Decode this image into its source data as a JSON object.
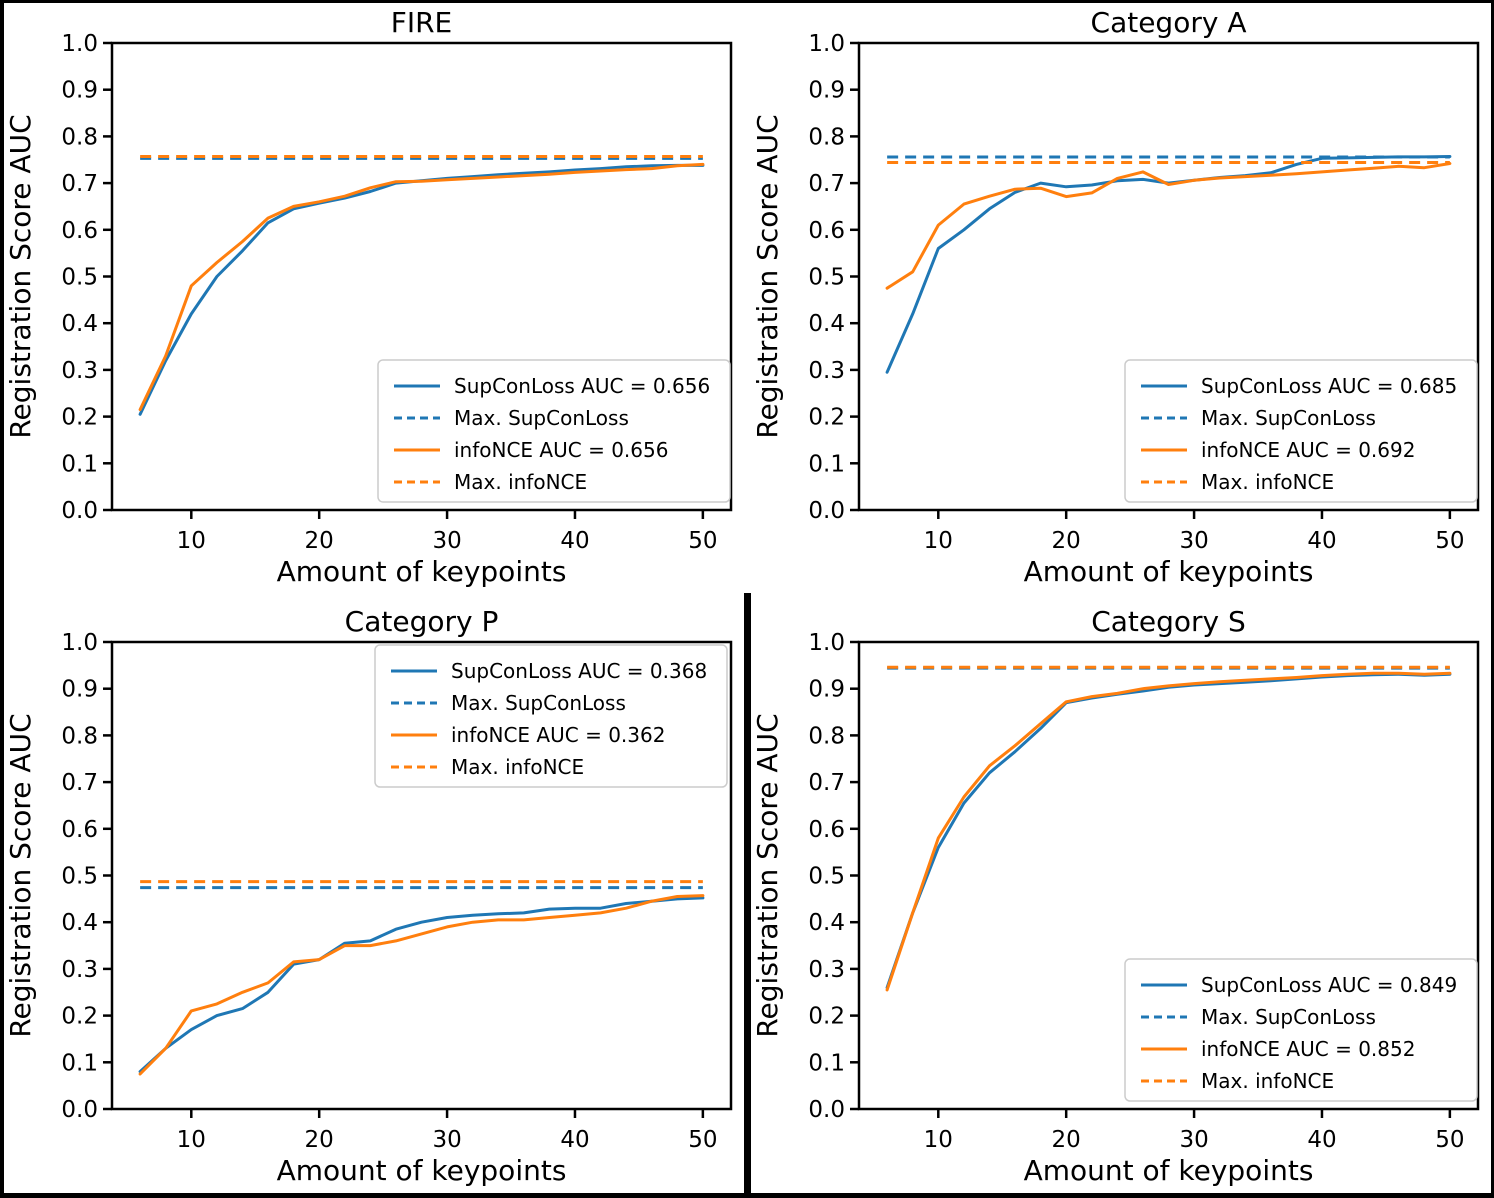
{
  "figure": {
    "background": "#ffffff",
    "border_color": "#000000",
    "ylabel": "Registration Score AUC",
    "xlabel": "Amount of keypoints",
    "colors": {
      "supconloss": "#1f77b4",
      "infonce": "#ff7f0e"
    }
  },
  "chart_data": [
    {
      "type": "line",
      "title": "FIRE",
      "xlabel": "Amount of keypoints",
      "ylabel": "Registration Score AUC",
      "xlim": [
        3.8,
        52.2
      ],
      "ylim": [
        0.0,
        1.0
      ],
      "x_ticks": [
        "10",
        "20",
        "30",
        "40",
        "50"
      ],
      "y_ticks": [
        "0.0",
        "0.1",
        "0.2",
        "0.3",
        "0.4",
        "0.5",
        "0.6",
        "0.7",
        "0.8",
        "0.9",
        "1.0"
      ],
      "grid": false,
      "legend_position": "lower_right",
      "x": [
        6,
        8,
        10,
        12,
        14,
        16,
        18,
        20,
        22,
        24,
        26,
        28,
        30,
        32,
        34,
        36,
        38,
        40,
        42,
        44,
        46,
        48,
        50
      ],
      "series": [
        {
          "name": "SupConLoss AUC = 0.656",
          "color": "#1f77b4",
          "dash": false,
          "values": [
            0.205,
            0.32,
            0.42,
            0.5,
            0.555,
            0.615,
            0.645,
            0.657,
            0.668,
            0.682,
            0.7,
            0.705,
            0.71,
            0.714,
            0.718,
            0.721,
            0.724,
            0.728,
            0.731,
            0.735,
            0.737,
            0.738,
            0.738
          ]
        },
        {
          "name": "Max. SupConLoss",
          "color": "#1f77b4",
          "dash": true,
          "hline": 0.753
        },
        {
          "name": "infoNCE AUC = 0.656",
          "color": "#ff7f0e",
          "dash": false,
          "values": [
            0.215,
            0.33,
            0.48,
            0.53,
            0.575,
            0.625,
            0.65,
            0.66,
            0.672,
            0.69,
            0.703,
            0.704,
            0.707,
            0.71,
            0.713,
            0.716,
            0.719,
            0.723,
            0.726,
            0.729,
            0.731,
            0.737,
            0.74
          ]
        },
        {
          "name": "Max. infoNCE",
          "color": "#ff7f0e",
          "dash": true,
          "hline": 0.757
        }
      ]
    },
    {
      "type": "line",
      "title": "Category A",
      "xlabel": "Amount of keypoints",
      "ylabel": "Registration Score AUC",
      "xlim": [
        3.8,
        52.2
      ],
      "ylim": [
        0.0,
        1.0
      ],
      "x_ticks": [
        "10",
        "20",
        "30",
        "40",
        "50"
      ],
      "y_ticks": [
        "0.0",
        "0.1",
        "0.2",
        "0.3",
        "0.4",
        "0.5",
        "0.6",
        "0.7",
        "0.8",
        "0.9",
        "1.0"
      ],
      "grid": false,
      "legend_position": "lower_right",
      "x": [
        6,
        8,
        10,
        12,
        14,
        16,
        18,
        20,
        22,
        24,
        26,
        28,
        30,
        32,
        34,
        36,
        38,
        40,
        42,
        44,
        46,
        48,
        50
      ],
      "series": [
        {
          "name": "SupConLoss AUC = 0.685",
          "color": "#1f77b4",
          "dash": false,
          "values": [
            0.295,
            0.42,
            0.56,
            0.6,
            0.645,
            0.68,
            0.7,
            0.692,
            0.696,
            0.705,
            0.708,
            0.7,
            0.706,
            0.712,
            0.716,
            0.722,
            0.74,
            0.753,
            0.754,
            0.755,
            0.756,
            0.756,
            0.757
          ]
        },
        {
          "name": "Max. SupConLoss",
          "color": "#1f77b4",
          "dash": true,
          "hline": 0.756
        },
        {
          "name": "infoNCE AUC = 0.692",
          "color": "#ff7f0e",
          "dash": false,
          "values": [
            0.475,
            0.51,
            0.61,
            0.655,
            0.672,
            0.687,
            0.689,
            0.671,
            0.679,
            0.71,
            0.724,
            0.697,
            0.706,
            0.711,
            0.714,
            0.717,
            0.72,
            0.724,
            0.728,
            0.732,
            0.736,
            0.733,
            0.742
          ]
        },
        {
          "name": "Max. infoNCE",
          "color": "#ff7f0e",
          "dash": true,
          "hline": 0.744
        }
      ]
    },
    {
      "type": "line",
      "title": "Category P",
      "xlabel": "Amount of keypoints",
      "ylabel": "Registration Score AUC",
      "xlim": [
        3.8,
        52.2
      ],
      "ylim": [
        0.0,
        1.0
      ],
      "x_ticks": [
        "10",
        "20",
        "30",
        "40",
        "50"
      ],
      "y_ticks": [
        "0.0",
        "0.1",
        "0.2",
        "0.3",
        "0.4",
        "0.5",
        "0.6",
        "0.7",
        "0.8",
        "0.9",
        "1.0"
      ],
      "grid": false,
      "legend_position": "upper_right",
      "x": [
        6,
        8,
        10,
        12,
        14,
        16,
        18,
        20,
        22,
        24,
        26,
        28,
        30,
        32,
        34,
        36,
        38,
        40,
        42,
        44,
        46,
        48,
        50
      ],
      "series": [
        {
          "name": "SupConLoss AUC = 0.368",
          "color": "#1f77b4",
          "dash": false,
          "values": [
            0.08,
            0.13,
            0.17,
            0.2,
            0.215,
            0.25,
            0.31,
            0.32,
            0.355,
            0.36,
            0.385,
            0.4,
            0.41,
            0.415,
            0.418,
            0.42,
            0.428,
            0.43,
            0.43,
            0.44,
            0.445,
            0.45,
            0.452
          ]
        },
        {
          "name": "Max. SupConLoss",
          "color": "#1f77b4",
          "dash": true,
          "hline": 0.474
        },
        {
          "name": "infoNCE AUC = 0.362",
          "color": "#ff7f0e",
          "dash": false,
          "values": [
            0.075,
            0.13,
            0.21,
            0.225,
            0.25,
            0.27,
            0.315,
            0.32,
            0.35,
            0.35,
            0.36,
            0.375,
            0.39,
            0.4,
            0.405,
            0.405,
            0.41,
            0.415,
            0.42,
            0.43,
            0.445,
            0.455,
            0.457
          ]
        },
        {
          "name": "Max. infoNCE",
          "color": "#ff7f0e",
          "dash": true,
          "hline": 0.487
        }
      ]
    },
    {
      "type": "line",
      "title": "Category S",
      "xlabel": "Amount of keypoints",
      "ylabel": "Registration Score AUC",
      "xlim": [
        3.8,
        52.2
      ],
      "ylim": [
        0.0,
        1.0
      ],
      "x_ticks": [
        "10",
        "20",
        "30",
        "40",
        "50"
      ],
      "y_ticks": [
        "0.0",
        "0.1",
        "0.2",
        "0.3",
        "0.4",
        "0.5",
        "0.6",
        "0.7",
        "0.8",
        "0.9",
        "1.0"
      ],
      "grid": false,
      "legend_position": "lower_right",
      "x": [
        6,
        8,
        10,
        12,
        14,
        16,
        18,
        20,
        22,
        24,
        26,
        28,
        30,
        32,
        34,
        36,
        38,
        40,
        42,
        44,
        46,
        48,
        50
      ],
      "series": [
        {
          "name": "SupConLoss AUC = 0.849",
          "color": "#1f77b4",
          "dash": false,
          "values": [
            0.26,
            0.42,
            0.56,
            0.655,
            0.72,
            0.765,
            0.815,
            0.87,
            0.88,
            0.888,
            0.895,
            0.903,
            0.908,
            0.911,
            0.914,
            0.917,
            0.921,
            0.925,
            0.928,
            0.93,
            0.931,
            0.929,
            0.931
          ]
        },
        {
          "name": "Max. SupConLoss",
          "color": "#1f77b4",
          "dash": true,
          "hline": 0.944
        },
        {
          "name": "infoNCE AUC = 0.852",
          "color": "#ff7f0e",
          "dash": false,
          "values": [
            0.255,
            0.42,
            0.58,
            0.668,
            0.735,
            0.778,
            0.825,
            0.872,
            0.883,
            0.89,
            0.9,
            0.906,
            0.911,
            0.915,
            0.918,
            0.921,
            0.924,
            0.928,
            0.931,
            0.933,
            0.933,
            0.931,
            0.933
          ]
        },
        {
          "name": "Max. infoNCE",
          "color": "#ff7f0e",
          "dash": true,
          "hline": 0.946
        }
      ]
    }
  ]
}
